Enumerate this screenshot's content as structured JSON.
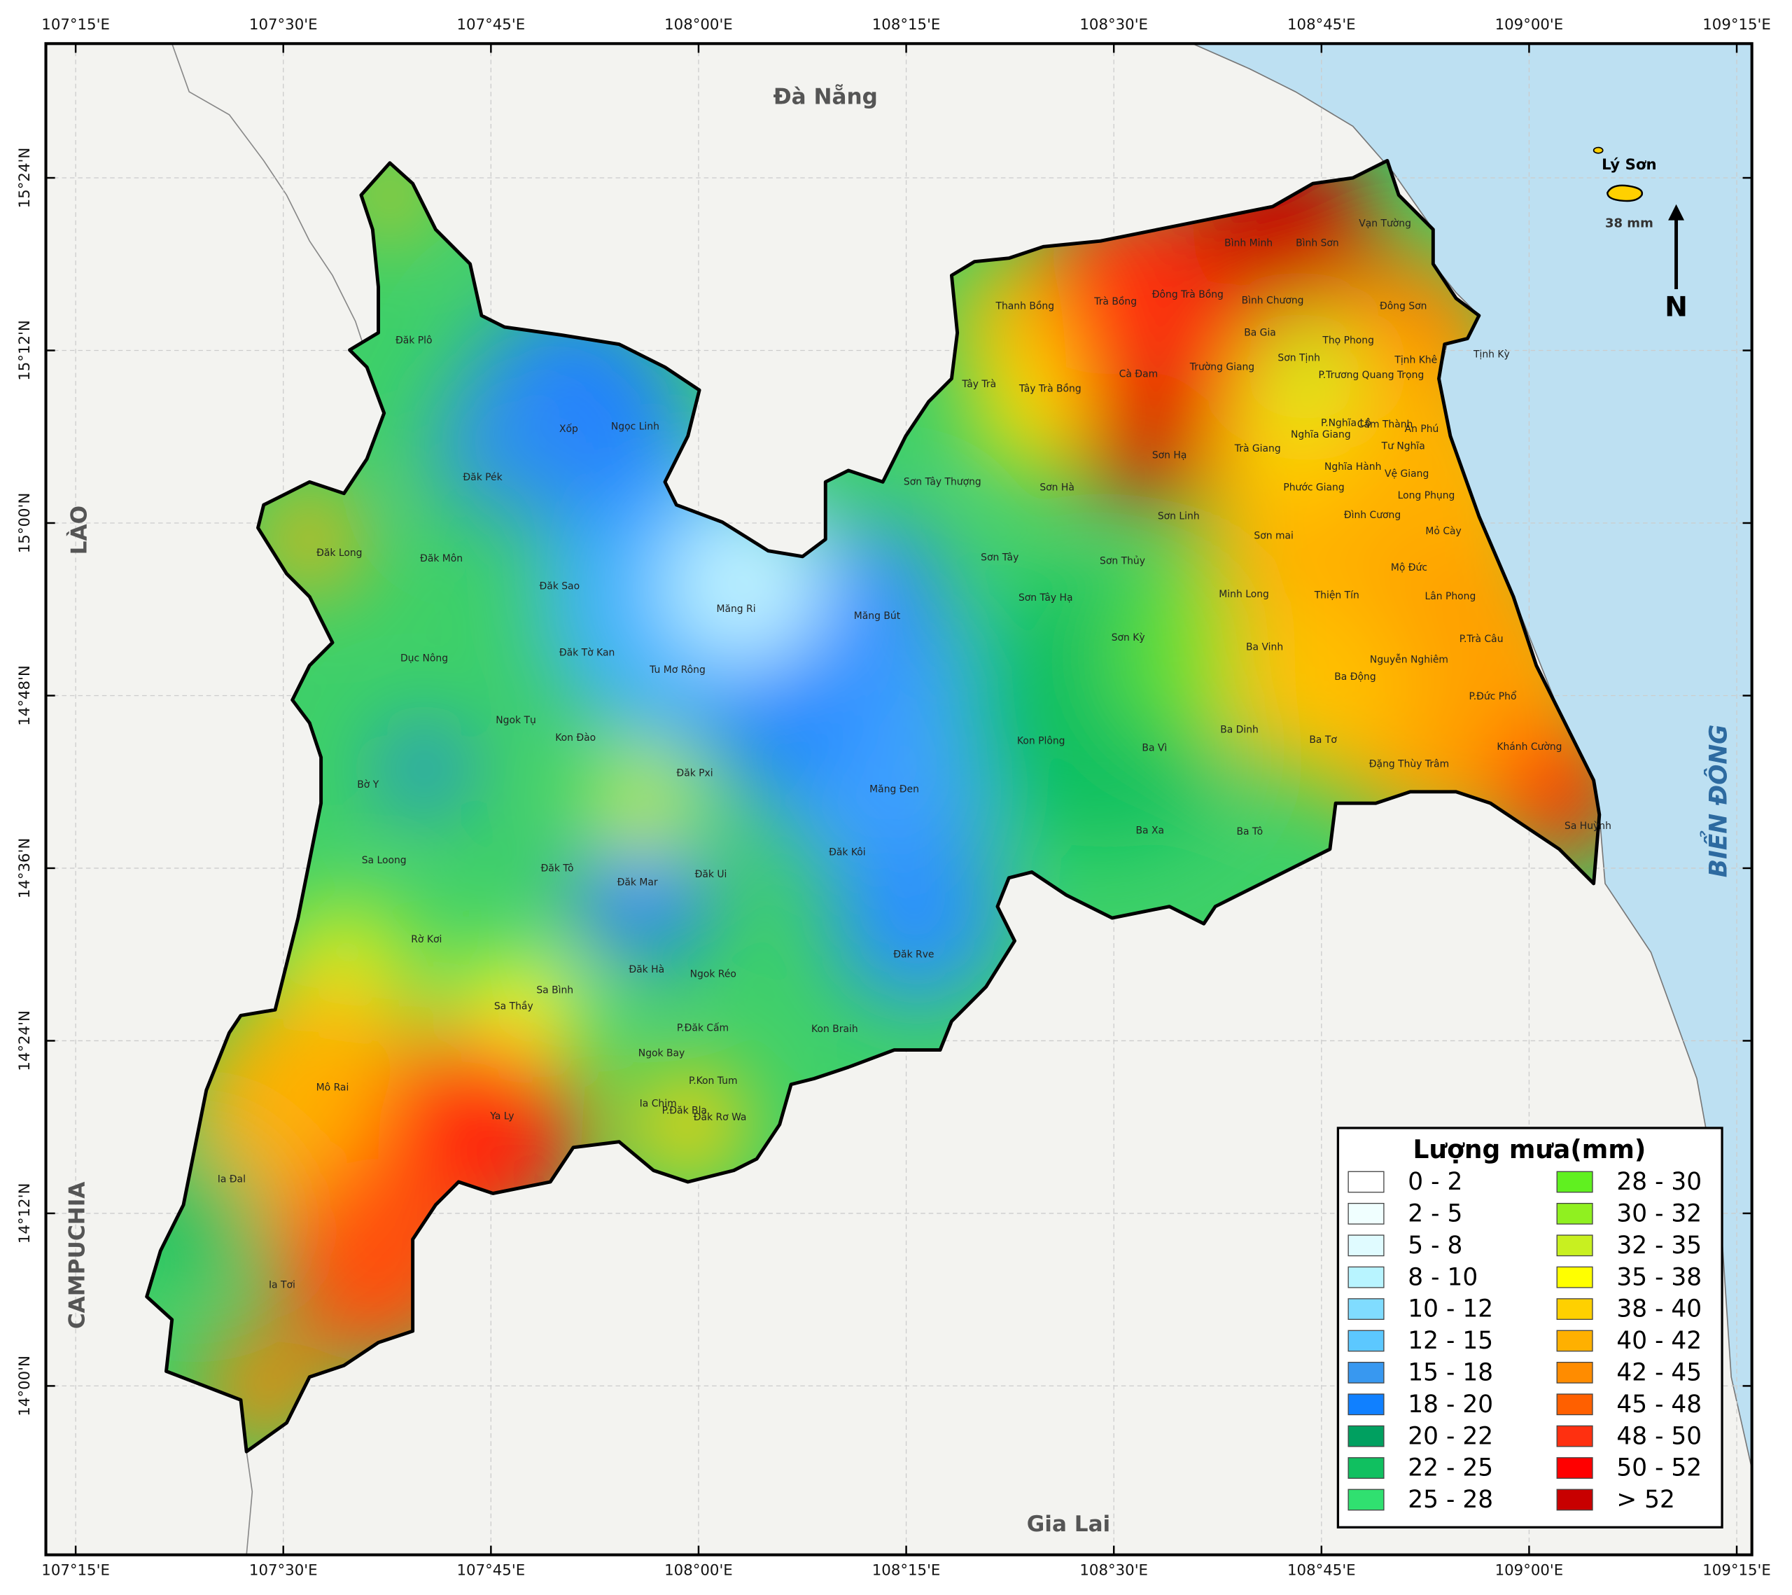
{
  "map": {
    "lon_ticks": [
      "107°15'E",
      "107°30'E",
      "107°45'E",
      "108°00'E",
      "108°15'E",
      "108°30'E",
      "108°45'E",
      "109°00'E",
      "109°15'E"
    ],
    "lat_ticks": [
      "15°24'N",
      "15°12'N",
      "15°00'N",
      "14°48'N",
      "14°36'N",
      "14°24'N",
      "14°12'N",
      "14°00'N"
    ],
    "regions": {
      "north": "Đà Nẵng",
      "west": "LÀO",
      "southwest": "CAMPUCHIA",
      "south": "Gia Lai",
      "sea": "BIỂN ĐÔNG"
    },
    "island": {
      "name": "Lý Sơn",
      "rainfall": "38 mm"
    },
    "north_arrow": "N",
    "places": [
      "Đăk Plô",
      "Xốp",
      "Ngọc Linh",
      "Đăk Pék",
      "Đăk Long",
      "Đăk Môn",
      "Đăk Sao",
      "Măng Ri",
      "Măng Bút",
      "Dục Nông",
      "Đăk Tờ Kan",
      "Tu Mơ Rông",
      "Ngok Tụ",
      "Kon Đào",
      "Đăk Pxi",
      "Bờ Y",
      "Măng Đen",
      "Đăk Kôi",
      "Sa Loong",
      "Đăk Tô",
      "Đăk Mar",
      "Đăk Ui",
      "Đăk Rve",
      "Rờ Kơi",
      "Đăk Hà",
      "Ngok Réo",
      "Sa Bình",
      "Sa Thầy",
      "P.Đăk Cấm",
      "Kon Braih",
      "Ngok Bay",
      "P.Kon Tum",
      "Ia Chim",
      "P.Đăk Bla",
      "Đăk Rơ Wa",
      "Mô Rai",
      "Ya Ly",
      "Ia Đal",
      "Ia Tơi",
      "Thanh Bồng",
      "Trà Bồng",
      "Đông Trà Bồng",
      "Bình Minh",
      "Bình Sơn",
      "Vạn Tường",
      "Đông Sơn",
      "Bình Chương",
      "Ba Gia",
      "Thọ Phong",
      "Sơn Tịnh",
      "Tịnh Khê",
      "Tịnh Kỳ",
      "Tây Trà",
      "Tây Trà Bồng",
      "Cà Đam",
      "Trường Giang",
      "P.Trương Quang Trọng",
      "P.Nghĩa Lộ",
      "Cẩm Thành",
      "An Phú",
      "Nghĩa Giang",
      "Sơn Hạ",
      "Trà Giang",
      "Tư Nghĩa",
      "Nghĩa Hành",
      "Vệ Giang",
      "Sơn Tây Thượng",
      "Sơn Hà",
      "Phước Giang",
      "Long Phụng",
      "Sơn Linh",
      "Đình Cương",
      "Mỏ Cày",
      "Sơn mai",
      "Sơn Tây",
      "Sơn Thủy",
      "Minh Long",
      "Thiện Tín",
      "Mộ Đức",
      "Lân Phong",
      "Sơn Tây Hạ",
      "Sơn Kỳ",
      "Ba Vinh",
      "P.Trà Câu",
      "Nguyễn Nghiêm",
      "Ba Động",
      "P.Đức Phổ",
      "Ba Dinh",
      "Kon Plông",
      "Ba Vì",
      "Ba Tơ",
      "Khánh Cường",
      "Đặng Thùy Trâm",
      "Ba Xa",
      "Ba Tô",
      "Sa Huỳnh"
    ],
    "legend": {
      "title": "Lượng mưa(mm)",
      "classes": [
        {
          "label": "0 - 2",
          "color": "#ffffff"
        },
        {
          "label": "2 - 5",
          "color": "#f0ffff"
        },
        {
          "label": "5 - 8",
          "color": "#e0fbff"
        },
        {
          "label": "8 - 10",
          "color": "#b8f4ff"
        },
        {
          "label": "10 - 12",
          "color": "#80dcff"
        },
        {
          "label": "12 - 15",
          "color": "#5cc8ff"
        },
        {
          "label": "15 - 18",
          "color": "#3898f0"
        },
        {
          "label": "18 - 20",
          "color": "#1080ff"
        },
        {
          "label": "20 - 22",
          "color": "#00a060"
        },
        {
          "label": "22 - 25",
          "color": "#10c060"
        },
        {
          "label": "25 - 28",
          "color": "#30e070"
        },
        {
          "label": "28 - 30",
          "color": "#60f020"
        },
        {
          "label": "30 - 32",
          "color": "#90f020"
        },
        {
          "label": "32 - 35",
          "color": "#c8f020"
        },
        {
          "label": "35 - 38",
          "color": "#ffff00"
        },
        {
          "label": "38 - 40",
          "color": "#ffd000"
        },
        {
          "label": "40 - 42",
          "color": "#ffb000"
        },
        {
          "label": "42 - 45",
          "color": "#ff8c00"
        },
        {
          "label": "45 - 48",
          "color": "#ff6000"
        },
        {
          "label": "48 - 50",
          "color": "#ff3010"
        },
        {
          "label": "50 - 52",
          "color": "#ff0000"
        },
        {
          "label": "> 52",
          "color": "#c80000"
        }
      ]
    }
  }
}
